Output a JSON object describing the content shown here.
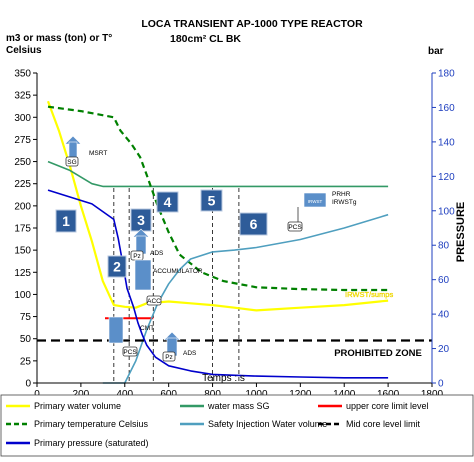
{
  "chart_data": {
    "type": "line",
    "title": "LOCA TRANSIENT AP-1000 TYPE REACTOR",
    "subtitle": "180cm² CL BK",
    "ylabel_left": "m3 or mass (ton) or T° Celsius",
    "ylabel_right_unit": "bar",
    "ylabel_right": "PRESSURE",
    "xlabel": "Temps : s",
    "xlim": [
      0,
      1800
    ],
    "ylim_left": [
      0,
      350
    ],
    "ylim_right": [
      0,
      180
    ],
    "x_ticks": [
      "0",
      "200",
      "400",
      "600",
      "800",
      "1000",
      "1200",
      "1400",
      "1600",
      "1800"
    ],
    "y_ticks_left": [
      "0",
      "25",
      "50",
      "75",
      "100",
      "125",
      "150",
      "175",
      "200",
      "225",
      "250",
      "275",
      "300",
      "325",
      "350"
    ],
    "y_ticks_right": [
      "0",
      "20",
      "40",
      "60",
      "80",
      "100",
      "120",
      "140",
      "160",
      "180"
    ],
    "grid": false,
    "legend_position": "bottom",
    "series": [
      {
        "name": "Primary water volume",
        "axis": "left",
        "color": "#ffff00",
        "style": "solid",
        "x": [
          50,
          100,
          150,
          200,
          250,
          300,
          350,
          400,
          450,
          500,
          600,
          700,
          800,
          900,
          1000,
          1200,
          1400,
          1600
        ],
        "y": [
          318,
          285,
          245,
          200,
          160,
          115,
          88,
          86,
          85,
          90,
          92,
          90,
          88,
          85,
          82,
          85,
          88,
          93
        ]
      },
      {
        "name": "water mass SG",
        "axis": "left",
        "color": "#339966",
        "style": "solid",
        "x": [
          50,
          150,
          250,
          300,
          500,
          1000,
          1600
        ],
        "y": [
          250,
          240,
          225,
          222,
          222,
          222,
          222
        ]
      },
      {
        "name": "upper core limit level",
        "axis": "left",
        "color": "#ff0000",
        "style": "solid",
        "x": [
          310,
          530
        ],
        "y": [
          73,
          73
        ]
      },
      {
        "name": "Primary temperature Celsius",
        "axis": "left",
        "color": "#008000",
        "style": "dashed",
        "x": [
          50,
          200,
          350,
          380,
          430,
          470,
          500,
          550,
          600,
          650,
          750,
          850,
          1000,
          1200,
          1400,
          1600
        ],
        "y": [
          312,
          307,
          300,
          285,
          270,
          255,
          235,
          200,
          170,
          145,
          125,
          115,
          108,
          106,
          105,
          105
        ]
      },
      {
        "name": "Safety Injection Water volume",
        "axis": "left",
        "color": "#4f9fbf",
        "style": "solid",
        "x": [
          300,
          400,
          450,
          500,
          550,
          600,
          650,
          700,
          800,
          900,
          1000,
          1200,
          1400,
          1600
        ],
        "y": [
          0,
          0,
          25,
          60,
          90,
          112,
          128,
          140,
          148,
          150,
          153,
          162,
          175,
          190
        ]
      },
      {
        "name": "Mid core level limit",
        "axis": "left",
        "color": "#000000",
        "style": "dashed",
        "x": [
          0,
          1800
        ],
        "y": [
          48,
          48
        ]
      },
      {
        "name": "Primary pressure (saturated)",
        "axis": "right",
        "color": "#0000cc",
        "style": "solid",
        "x": [
          50,
          150,
          250,
          350,
          370,
          390,
          410,
          440,
          460,
          480,
          500,
          540,
          600,
          700,
          800,
          1000,
          1200,
          1400,
          1600
        ],
        "y": [
          112,
          108,
          104,
          95,
          84,
          70,
          55,
          44,
          35,
          28,
          22,
          15,
          10,
          7,
          5,
          4,
          3.5,
          3,
          3
        ]
      }
    ],
    "vertical_markers_x": [
      350,
      420,
      530,
      800,
      920
    ],
    "annotations": {
      "phases": [
        "1",
        "2",
        "3",
        "4",
        "5",
        "6"
      ],
      "prohibited_zone": "PROHIBITED ZONE",
      "msrt": "MSRT",
      "sg": "SG",
      "ads_top": "ADS",
      "ads_bottom": "ADS",
      "pz_top": "Pz",
      "pz_bottom": "Pz",
      "accumulator": "ACCUMULATOR",
      "acc": "ACC",
      "cmt": "CMT",
      "pcs_left": "PCS",
      "pcs_mid": "PCS",
      "pcs_right": "PCS",
      "prhr_line1": "PRHR",
      "prhr_line2": "IRWSTg",
      "irwst_tag": "IRWST",
      "yellow_end_label": "IRWST/sumps"
    }
  },
  "colors": {
    "plot_bg": "#ffffff",
    "phase_box": "#2e5c99",
    "icon_blue": "#5b8fc9",
    "pressure_axis": "#1f3fbf"
  }
}
